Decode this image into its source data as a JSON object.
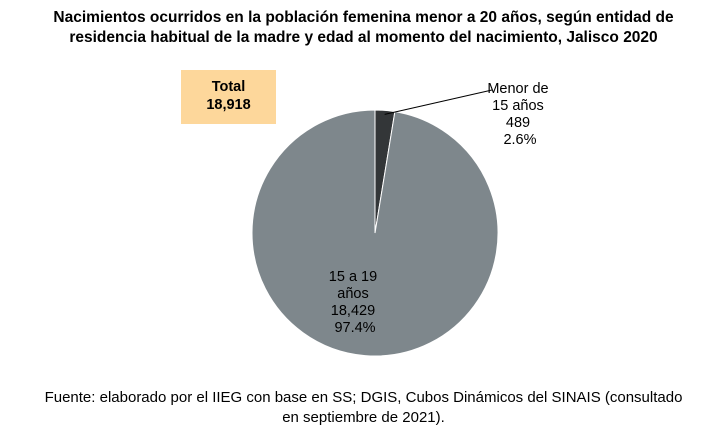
{
  "chart_data": {
    "type": "pie",
    "title_lines": [
      "Nacimientos ocurridos en la población femenina menor a 20 años, según entidad de",
      "residencia habitual de la madre y edad al momento del nacimiento, Jalisco 2020"
    ],
    "total": {
      "label": "Total",
      "value": "18,918"
    },
    "slices": [
      {
        "label_lines": [
          "Menor de",
          "15 años"
        ],
        "value": 489,
        "value_text": "489",
        "percent_text": "2.6%",
        "color": "#333638"
      },
      {
        "label_lines": [
          "15 a 19",
          "años"
        ],
        "value": 18429,
        "value_text": "18,429",
        "percent_text": "97.4%",
        "color": "#7e878c"
      }
    ],
    "source_lines": [
      "Fuente: elaborado por el IIEG con base en SS; DGIS, Cubos Dinámicos del SINAIS (consultado",
      "en septiembre de 2021)."
    ],
    "colors": {
      "total_box": "#fdd79b"
    }
  }
}
